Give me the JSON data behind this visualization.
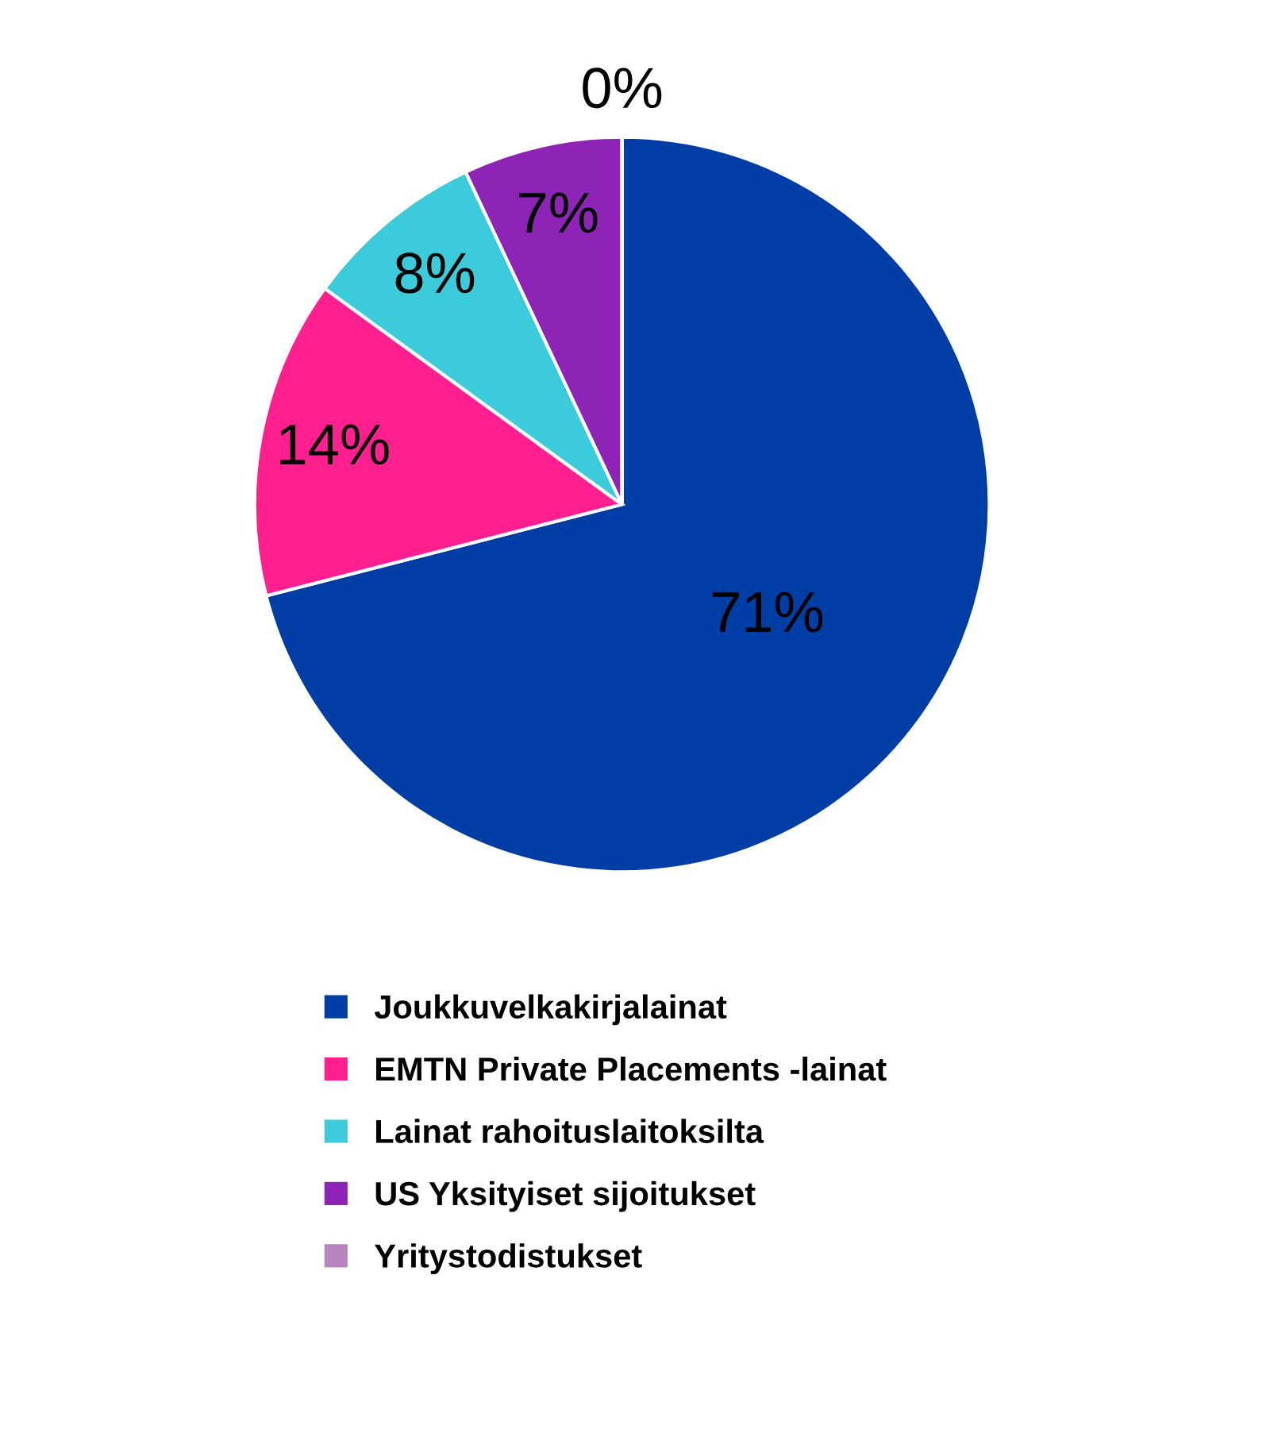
{
  "chart_data": {
    "type": "pie",
    "categories": [
      "Joukkuvelkakirjalainat",
      "EMTN Private Placements -lainat",
      "Lainat rahoituslaitoksilta",
      "US Yksityiset sijoitukset",
      "Yritystodistukset"
    ],
    "values": [
      71,
      14,
      8,
      7,
      0
    ],
    "colors": [
      "#003da5",
      "#ff1f8e",
      "#3ccbda",
      "#8e24b5",
      "#b784c0"
    ],
    "value_labels": [
      "71%",
      "14%",
      "8%",
      "7%",
      "0%"
    ],
    "legend": "bottom"
  }
}
